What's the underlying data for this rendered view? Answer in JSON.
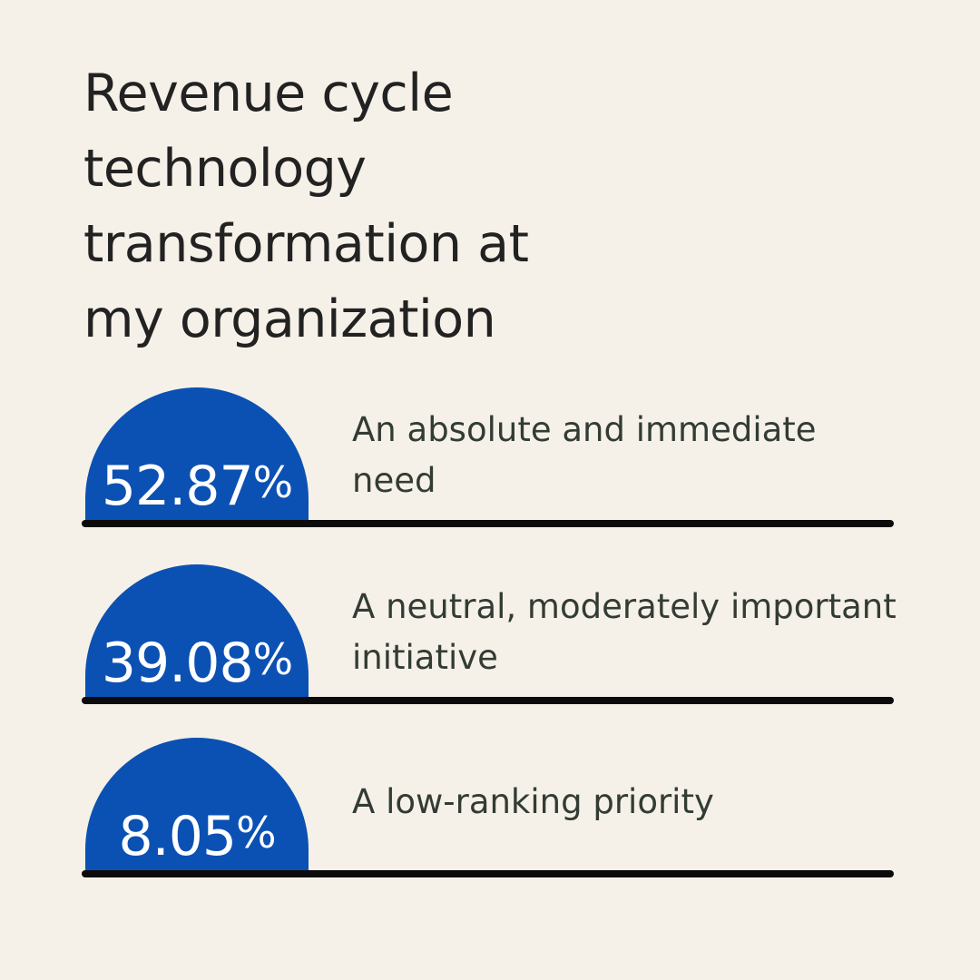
{
  "title": {
    "text": "Revenue cycle technology transformation at my organization",
    "lines": [
      "Revenue cycle",
      "technology",
      "transformation at",
      "my organization"
    ]
  },
  "chart_data": {
    "type": "bar",
    "variant": "pictogram-dome-list",
    "title": "Revenue cycle technology transformation at my organization",
    "unit": "%",
    "categories": [
      "An absolute and immediate need",
      "A neutral, moderately important initiative",
      "A low-ranking priority"
    ],
    "values": [
      52.87,
      39.08,
      8.05
    ],
    "value_labels": [
      "52.87%",
      "39.08%",
      "8.05%"
    ],
    "legend": "none",
    "grid": false,
    "items": [
      {
        "value": "52.87",
        "suffix": "%",
        "label": "An absolute and immediate need",
        "label_lines": [
          "An absolute and immediate",
          "need"
        ]
      },
      {
        "value": "39.08",
        "suffix": "%",
        "label": "A neutral, moderately important initiative",
        "label_lines": [
          "A neutral, moderately important",
          "initiative"
        ]
      },
      {
        "value": "8.05",
        "suffix": "%",
        "label": "A low-ranking priority",
        "label_lines": [
          "A low-ranking priority"
        ]
      }
    ]
  },
  "colors": {
    "background": "#f5f1e8",
    "dome_fill": "#0b51b3",
    "value_text": "#ffffff",
    "label_text": "#333c34",
    "title_text": "#222222",
    "baseline": "#0b0b0b"
  }
}
